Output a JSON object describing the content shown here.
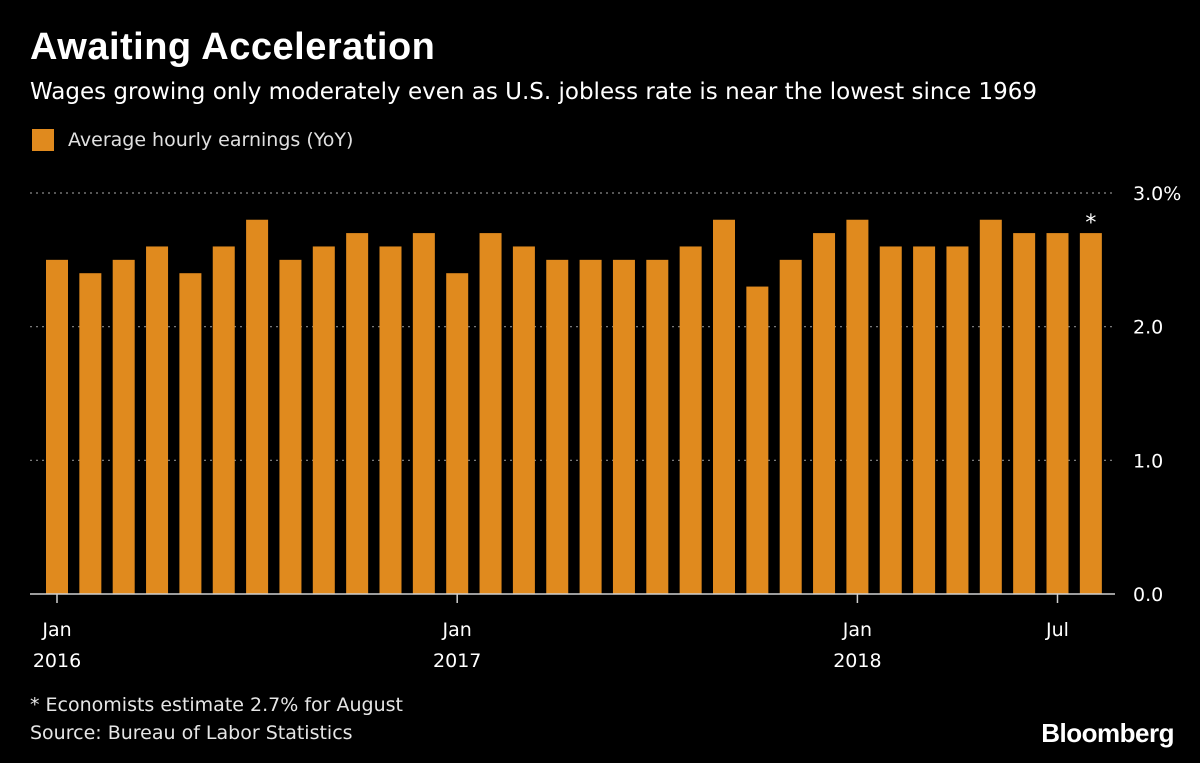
{
  "header": {
    "title": "Awaiting Acceleration",
    "subtitle": "Wages growing only moderately even as U.S. jobless rate is near the lowest since 1969"
  },
  "legend": {
    "label": "Average hourly earnings (YoY)"
  },
  "colors": {
    "bar": "#e08a1e",
    "background": "#000000",
    "grid": "#8a8a8a",
    "axis": "#cfcfcf"
  },
  "chart_data": {
    "type": "bar",
    "categories": [
      "2016-01",
      "2016-02",
      "2016-03",
      "2016-04",
      "2016-05",
      "2016-06",
      "2016-07",
      "2016-08",
      "2016-09",
      "2016-10",
      "2016-11",
      "2016-12",
      "2017-01",
      "2017-02",
      "2017-03",
      "2017-04",
      "2017-05",
      "2017-06",
      "2017-07",
      "2017-08",
      "2017-09",
      "2017-10",
      "2017-11",
      "2017-12",
      "2018-01",
      "2018-02",
      "2018-03",
      "2018-04",
      "2018-05",
      "2018-06",
      "2018-07",
      "2018-08"
    ],
    "values": [
      2.5,
      2.4,
      2.5,
      2.6,
      2.4,
      2.6,
      2.8,
      2.5,
      2.6,
      2.7,
      2.6,
      2.7,
      2.4,
      2.7,
      2.6,
      2.5,
      2.5,
      2.5,
      2.5,
      2.6,
      2.8,
      2.3,
      2.5,
      2.7,
      2.8,
      2.6,
      2.6,
      2.6,
      2.8,
      2.7,
      2.7,
      2.7
    ],
    "series_name": "Average hourly earnings (YoY)",
    "title": "Awaiting Acceleration",
    "ylim": [
      0,
      3.0
    ],
    "y_ticks": [
      {
        "value": 0,
        "label": "0.0"
      },
      {
        "value": 1,
        "label": "1.0"
      },
      {
        "value": 2,
        "label": "2.0"
      },
      {
        "value": 3,
        "label": "3.0%"
      }
    ],
    "x_ticks": [
      {
        "index": 0,
        "line1": "Jan",
        "line2": "2016"
      },
      {
        "index": 12,
        "line1": "Jan",
        "line2": "2017"
      },
      {
        "index": 24,
        "line1": "Jan",
        "line2": "2018"
      },
      {
        "index": 30,
        "line1": "Jul",
        "line2": ""
      }
    ],
    "annotations": [
      {
        "index": 31,
        "text": "*"
      }
    ],
    "grid": true
  },
  "footer": {
    "footnote": "* Economists estimate 2.7% for August",
    "source": "Source: Bureau of Labor Statistics",
    "brand": "Bloomberg"
  }
}
